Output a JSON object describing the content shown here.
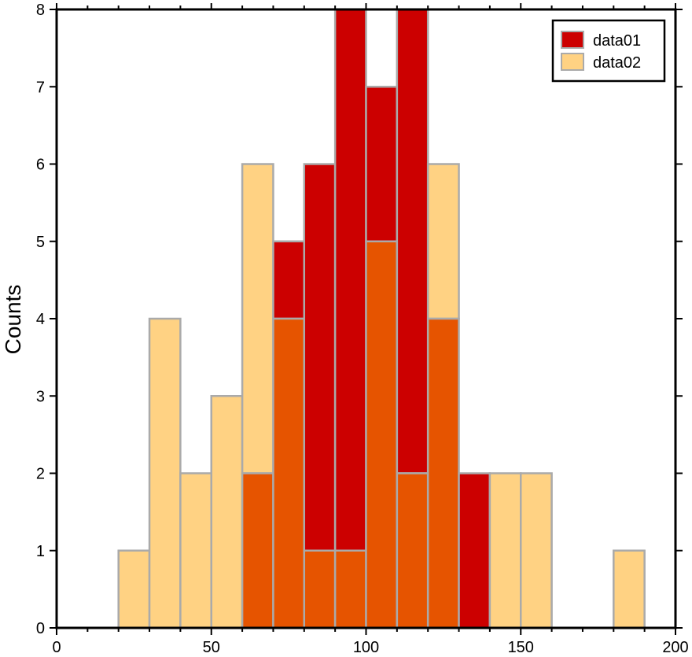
{
  "chart_data": {
    "type": "bar",
    "subtype": "overlapping-histogram",
    "title": "",
    "xlabel": "",
    "ylabel": "Counts",
    "xlim": [
      0,
      200
    ],
    "ylim": [
      0,
      8
    ],
    "x_major_ticks": [
      0,
      50,
      100,
      150,
      200
    ],
    "x_minor_step": 10,
    "y_major_ticks": [
      0,
      1,
      2,
      3,
      4,
      5,
      6,
      7,
      8
    ],
    "grid": false,
    "legend_position": "top-right",
    "bin_width": 10,
    "bin_edges": [
      20,
      30,
      40,
      50,
      60,
      70,
      80,
      90,
      100,
      110,
      120,
      130,
      140,
      150,
      160,
      170,
      180,
      190
    ],
    "overlap_color": "#e65400",
    "bar_edge_color": "#aaaaaa",
    "series": [
      {
        "name": "data01",
        "color": "#cc0000",
        "bins": [
          [
            60,
            2
          ],
          [
            70,
            5
          ],
          [
            80,
            6
          ],
          [
            90,
            8
          ],
          [
            100,
            7
          ],
          [
            110,
            8
          ],
          [
            120,
            4
          ],
          [
            130,
            2
          ]
        ]
      },
      {
        "name": "data02",
        "color": "#ffd283",
        "bins": [
          [
            20,
            1
          ],
          [
            30,
            4
          ],
          [
            40,
            2
          ],
          [
            50,
            3
          ],
          [
            60,
            6
          ],
          [
            70,
            4
          ],
          [
            80,
            1
          ],
          [
            90,
            1
          ],
          [
            100,
            5
          ],
          [
            110,
            2
          ],
          [
            120,
            6
          ],
          [
            140,
            2
          ],
          [
            150,
            2
          ],
          [
            180,
            1
          ]
        ]
      }
    ]
  }
}
